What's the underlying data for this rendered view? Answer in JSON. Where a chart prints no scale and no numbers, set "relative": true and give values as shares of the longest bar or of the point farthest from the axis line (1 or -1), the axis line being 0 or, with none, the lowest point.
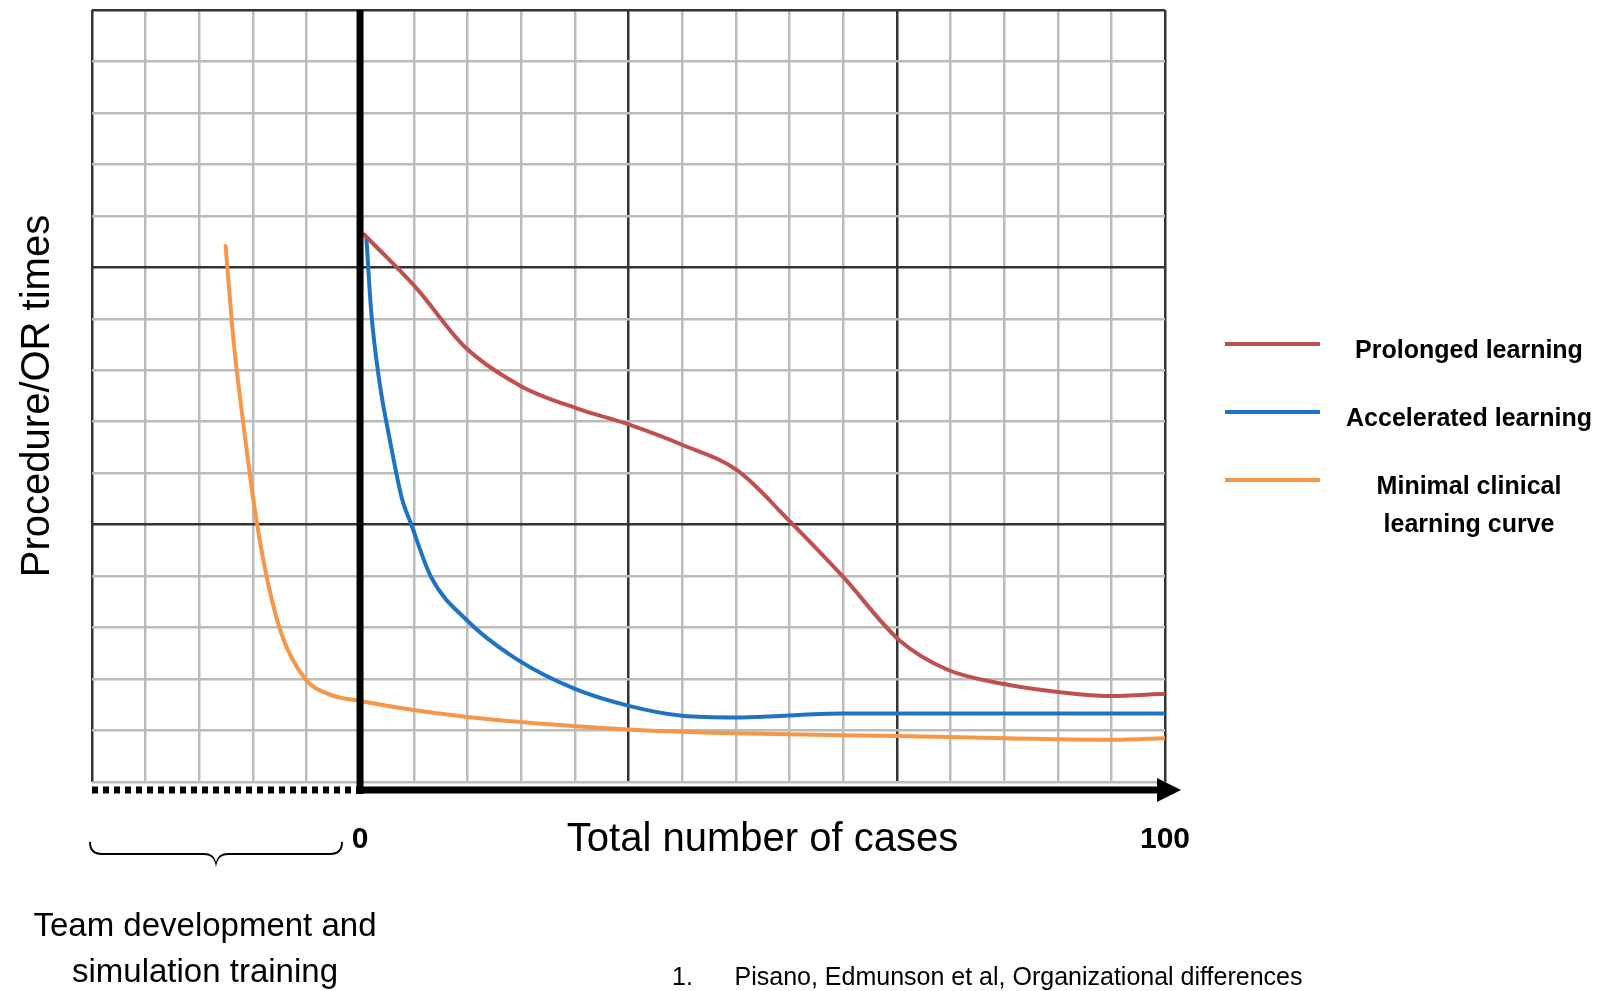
{
  "chart_data": {
    "type": "line",
    "relative": true,
    "xlabel": "Total number of cases",
    "ylabel": "Procedure/OR times",
    "xlim": [
      -33.3,
      100
    ],
    "xticks": [
      {
        "value": -33.3,
        "label": null
      },
      {
        "value": -26.7,
        "label": null
      },
      {
        "value": -20,
        "label": null
      },
      {
        "value": -13.3,
        "label": null
      },
      {
        "value": -6.7,
        "label": null
      },
      0,
      {
        "value": 6.7,
        "label": null
      },
      {
        "value": 13.3,
        "label": null
      },
      {
        "value": 20,
        "label": null
      },
      {
        "value": 26.7,
        "label": null
      },
      {
        "value": 33.3,
        "label": null
      },
      {
        "value": 40,
        "label": null
      },
      {
        "value": 46.7,
        "label": null
      },
      {
        "value": 53.3,
        "label": null
      },
      {
        "value": 60,
        "label": null
      },
      {
        "value": 66.7,
        "label": null
      },
      {
        "value": 73.3,
        "label": null
      },
      {
        "value": 80,
        "label": null
      },
      {
        "value": 86.7,
        "label": null
      },
      {
        "value": 93.3,
        "label": null
      },
      100
    ],
    "grid": true,
    "legend": "right",
    "marker": "none",
    "line_style": "solid",
    "annotations": [
      "Team development and simulation training",
      "1.      Pisano, Edmunson et al, Organizational differences"
    ],
    "series": [
      {
        "name": "Prolonged learning",
        "color": "#c0504d",
        "x": [
          0.5,
          7,
          13,
          20,
          27,
          33,
          40,
          47,
          53,
          60,
          67,
          73,
          80,
          87,
          93,
          100
        ],
        "values": [
          1.0,
          0.902,
          0.795,
          0.723,
          0.682,
          0.655,
          0.616,
          0.568,
          0.482,
          0.375,
          0.259,
          0.205,
          0.179,
          0.164,
          0.157,
          0.161
        ]
      },
      {
        "name": "Accelerated learning",
        "color": "#1f73c4",
        "x": [
          0.8,
          1.4,
          2.4,
          3.7,
          5.2,
          6.3,
          8.8,
          13.3,
          19.6,
          26.7,
          33.4,
          40,
          46.8,
          60,
          100
        ],
        "values": [
          0.991,
          0.857,
          0.732,
          0.625,
          0.518,
          0.473,
          0.375,
          0.295,
          0.223,
          0.17,
          0.139,
          0.121,
          0.118,
          0.125,
          0.125
        ]
      },
      {
        "name": "Minimal clinical learning curve",
        "color": "#f79646",
        "x": [
          -16.7,
          -15.7,
          -14.4,
          -13.1,
          -11.6,
          -9.7,
          -6.8,
          -4,
          0,
          12.6,
          33.4,
          46.8,
          66.8,
          93.6,
          100
        ],
        "values": [
          0.979,
          0.804,
          0.643,
          0.5,
          0.375,
          0.268,
          0.188,
          0.161,
          0.148,
          0.12,
          0.096,
          0.089,
          0.084,
          0.077,
          0.08
        ]
      }
    ]
  }
}
